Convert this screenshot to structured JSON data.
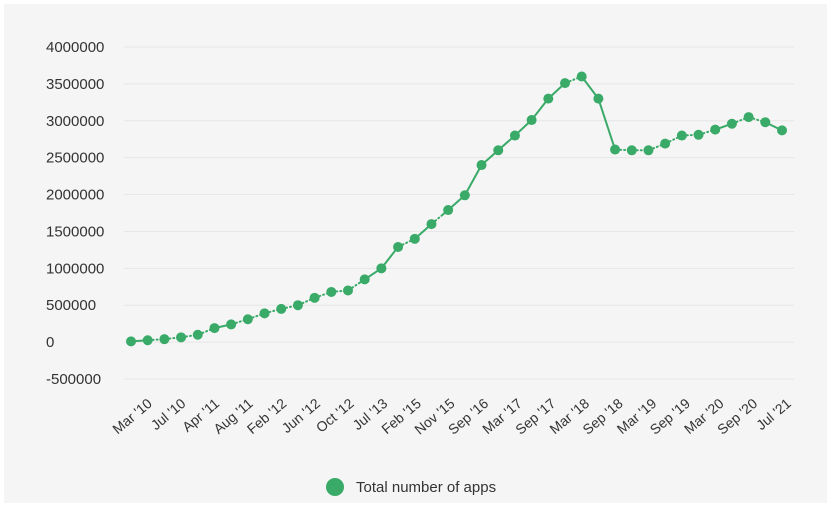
{
  "chart_data": {
    "type": "line",
    "y_ticks": [
      "4000000",
      "3500000",
      "3000000",
      "2500000",
      "2000000",
      "1500000",
      "1000000",
      "500000",
      "0",
      "-500000"
    ],
    "ylim": [
      -500000,
      4000000
    ],
    "x_ticks": [
      "Mar '10",
      "Jul '10",
      "Apr '11",
      "Aug '11",
      "Feb '12",
      "Jun '12",
      "Oct '12",
      "Jul '13",
      "Feb '15",
      "Nov '15",
      "Sep '16",
      "Mar '17",
      "Sep '17",
      "Mar '18",
      "Sep '18",
      "Mar '19",
      "Sep '19",
      "Mar '20",
      "Sep '20",
      "Jul '21"
    ],
    "series": [
      {
        "name": "Total number of apps",
        "color": "#3aaa68",
        "values": [
          10000,
          25000,
          40000,
          65000,
          100000,
          190000,
          240000,
          310000,
          390000,
          450000,
          500000,
          600000,
          680000,
          700000,
          850000,
          1000000,
          1290000,
          1400000,
          1600000,
          1790000,
          1990000,
          2400000,
          2600000,
          2800000,
          3010000,
          3300000,
          3510000,
          3600000,
          3300000,
          2610000,
          2600000,
          2600000,
          2690000,
          2800000,
          2810000,
          2880000,
          2960000,
          3050000,
          2980000,
          2870000
        ],
        "solid_segments": [
          [
            0,
            1
          ],
          [
            5,
            6
          ],
          [
            14,
            15
          ],
          [
            15,
            16
          ],
          [
            17,
            18
          ],
          [
            19,
            20
          ],
          [
            20,
            21
          ],
          [
            21,
            22
          ],
          [
            22,
            23
          ],
          [
            23,
            24
          ],
          [
            24,
            25
          ],
          [
            25,
            26
          ],
          [
            27,
            28
          ],
          [
            28,
            29
          ],
          [
            35,
            36
          ],
          [
            38,
            39
          ]
        ]
      }
    ],
    "grid": true,
    "legend_position": "bottom"
  },
  "legend": {
    "label": "Total number of apps",
    "icon": "circle-marker"
  }
}
